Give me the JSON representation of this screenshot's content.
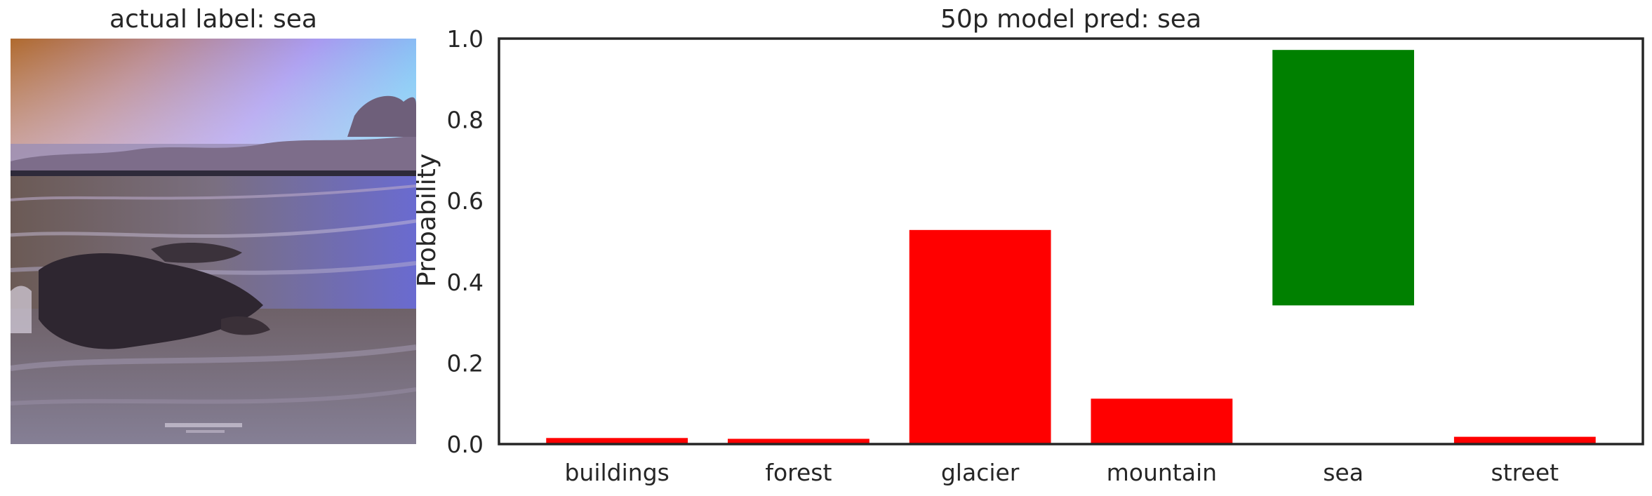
{
  "left_panel": {
    "title": "actual label: sea"
  },
  "chart_data": {
    "type": "bar",
    "title": "50p model pred: sea",
    "xlabel": "",
    "ylabel": "Probability",
    "ylim": [
      0,
      1.0
    ],
    "yticks": [
      0.0,
      0.2,
      0.4,
      0.6,
      0.8,
      1.0
    ],
    "ytick_labels": [
      "0.0",
      "0.2",
      "0.4",
      "0.6",
      "0.8",
      "1.0"
    ],
    "categories": [
      "buildings",
      "forest",
      "glacier",
      "mountain",
      "sea",
      "street"
    ],
    "bars": [
      {
        "category": "buildings",
        "value": 0.015,
        "base": 0,
        "color": "#ff0000"
      },
      {
        "category": "forest",
        "value": 0.013,
        "base": 0,
        "color": "#ff0000"
      },
      {
        "category": "glacier",
        "value": 0.528,
        "base": 0,
        "color": "#ff0000"
      },
      {
        "category": "mountain",
        "value": 0.112,
        "base": 0,
        "color": "#ff0000"
      },
      {
        "category": "sea",
        "value": 0.972,
        "base": 0.342,
        "color": "#008000"
      },
      {
        "category": "street",
        "value": 0.018,
        "base": 0,
        "color": "#ff0000"
      }
    ],
    "grid": false
  }
}
